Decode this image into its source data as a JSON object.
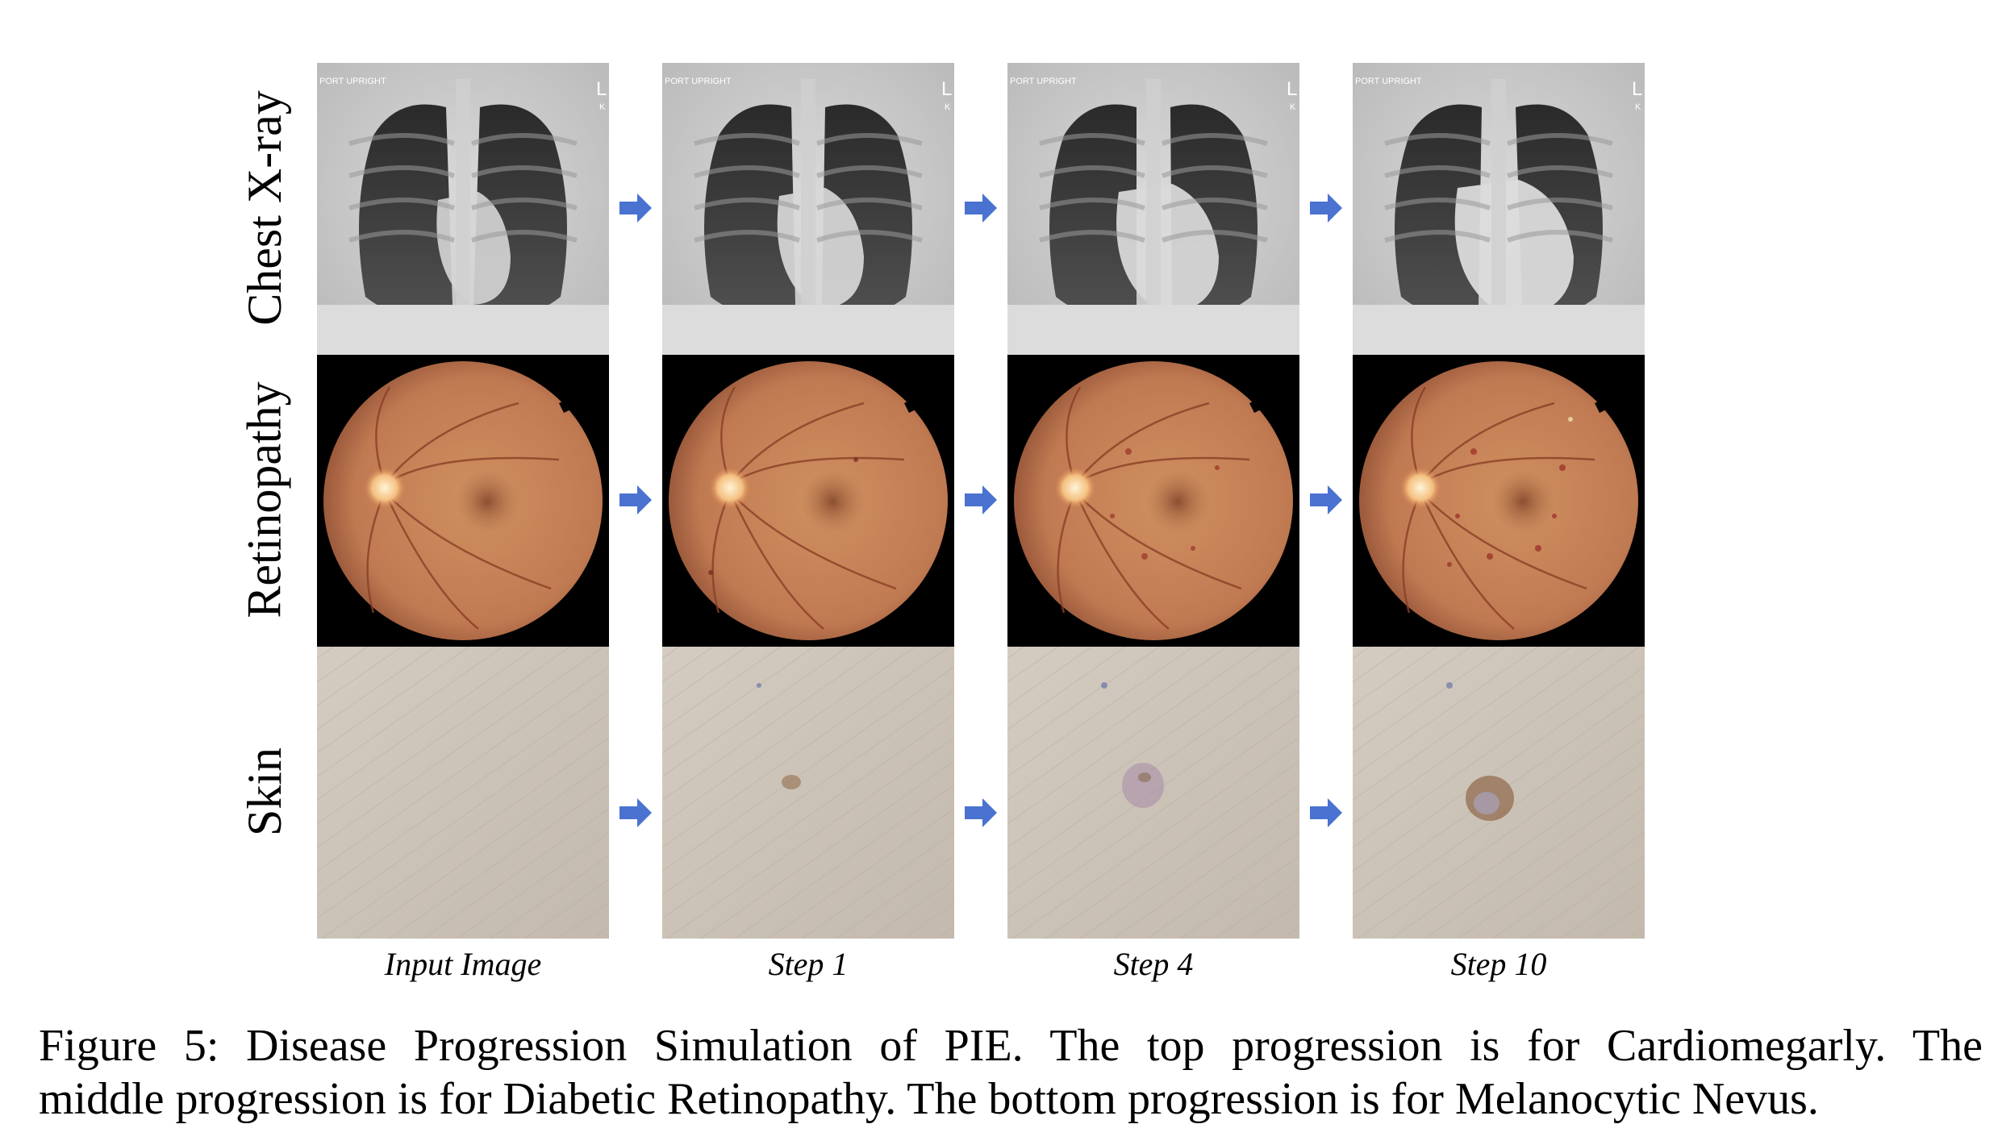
{
  "rows": [
    {
      "label": "Chest X-ray"
    },
    {
      "label": "Retinopathy"
    },
    {
      "label": "Skin"
    }
  ],
  "columns": [
    {
      "label": "Input Image"
    },
    {
      "label": "Step 1"
    },
    {
      "label": "Step 4"
    },
    {
      "label": "Step 10"
    }
  ],
  "xray_overlay": {
    "tag_left": "PORT UPRIGHT",
    "tag_right": "L",
    "tag_right_small": "K"
  },
  "caption": {
    "line1": "Figure 5: Disease Progression Simulation of PIE. The top progression is for Cardiomegarly. The",
    "line2": "middle progression is for Diabetic Retinopathy. The bottom progression is for Melanocytic Nevus."
  },
  "colors": {
    "arrow": "#4a72d0",
    "fundus": "#c98a5c",
    "skin": "#cfc6bb"
  }
}
